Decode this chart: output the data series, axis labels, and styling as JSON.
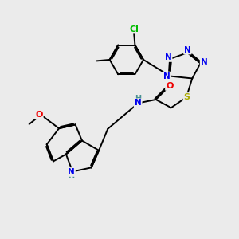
{
  "bg_color": "#ebebeb",
  "atom_colors": {
    "C": "#000000",
    "N": "#0000ee",
    "O": "#ee0000",
    "S": "#aaaa00",
    "Cl": "#00bb00",
    "H_label": "#4a9090"
  },
  "bond_color": "#000000",
  "bond_width": 1.4,
  "figsize": [
    3.0,
    3.0
  ],
  "dpi": 100
}
